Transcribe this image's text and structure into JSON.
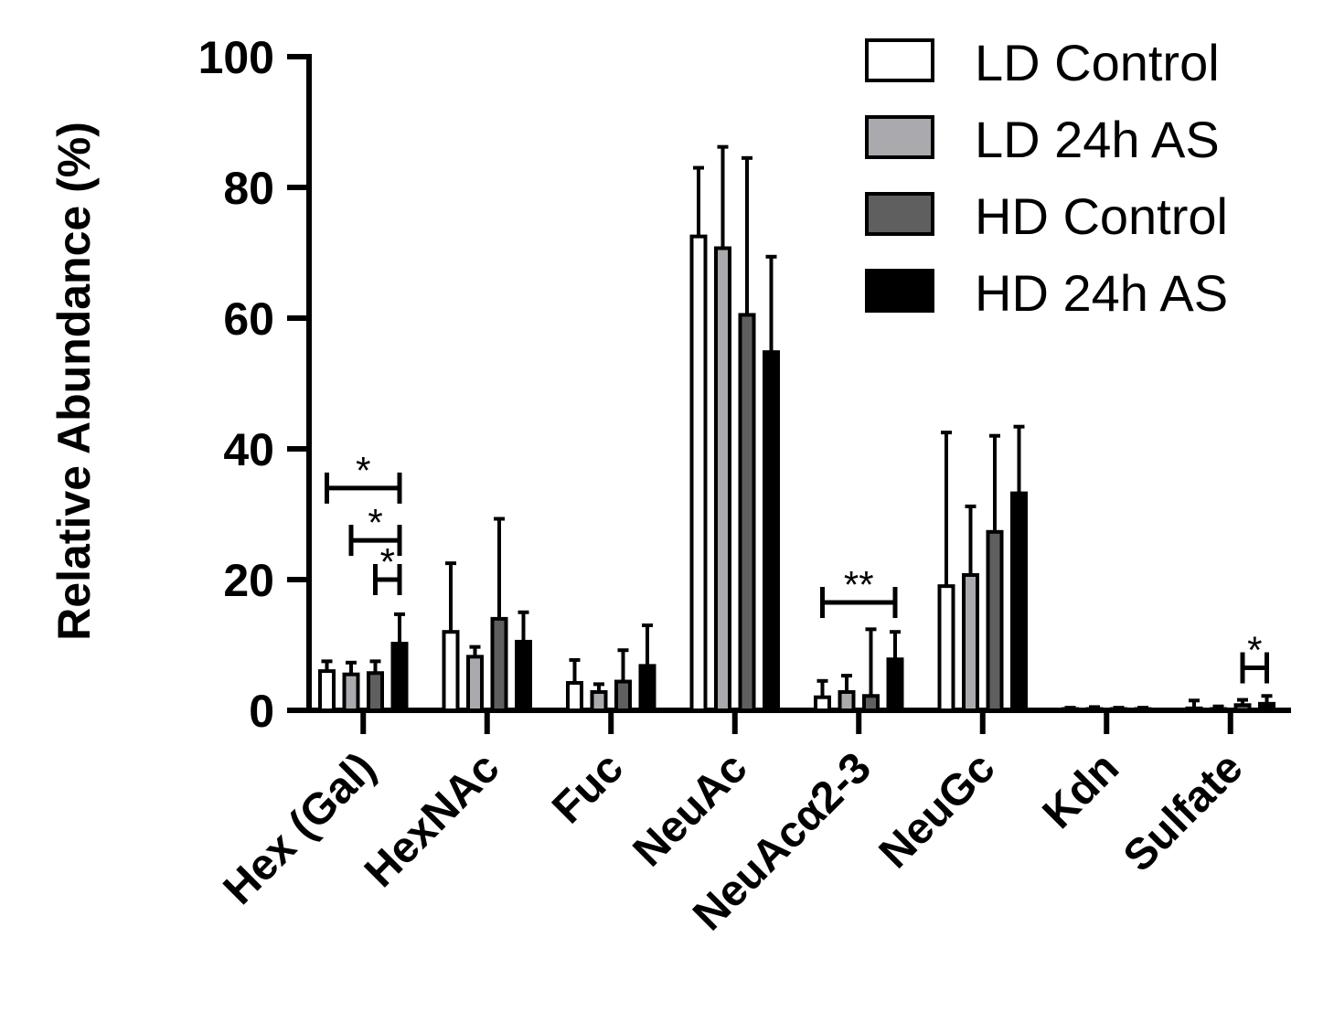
{
  "chart_data": {
    "type": "bar",
    "title": "",
    "xlabel": "",
    "ylabel": "Relative Abundance (%)",
    "ylim": [
      0,
      100
    ],
    "yticks": [
      0,
      20,
      40,
      60,
      80,
      100
    ],
    "categories": [
      "Hex (Gal)",
      "HexNAc",
      "Fuc",
      "NeuAc",
      "NeuAcα2-3",
      "NeuGc",
      "Kdn",
      "Sulfate"
    ],
    "series": [
      {
        "name": "LD Control",
        "color": "#ffffff",
        "values": [
          6,
          12,
          4.2,
          72.5,
          2,
          19,
          0.2,
          0.3
        ],
        "errors": [
          1.5,
          10.5,
          3.5,
          10.5,
          2.5,
          23.5,
          0.2,
          1.2
        ]
      },
      {
        "name": "LD 24h AS",
        "color": "#a9a9ae",
        "values": [
          5.5,
          8.2,
          2.8,
          70.7,
          2.8,
          20.7,
          0.2,
          0.2
        ],
        "errors": [
          1.8,
          1.5,
          1.2,
          15.5,
          2.5,
          10.5,
          0.3,
          0.4
        ]
      },
      {
        "name": "HD Control",
        "color": "#5f5f5f",
        "values": [
          5.7,
          14,
          4.4,
          60.5,
          2.2,
          27.3,
          0.2,
          0.8
        ],
        "errors": [
          1.8,
          15.3,
          4.8,
          24,
          10.2,
          14.7,
          0.2,
          0.8
        ]
      },
      {
        "name": "HD 24h AS",
        "color": "#000000",
        "values": [
          10.2,
          10.5,
          6.8,
          54.8,
          7.8,
          33.2,
          0.2,
          1
        ],
        "errors": [
          4.5,
          4.5,
          6.2,
          14.6,
          4.2,
          10.2,
          0.2,
          1.2
        ]
      }
    ],
    "significance": [
      {
        "category": "Hex (Gal)",
        "from": "LD Control",
        "to": "HD 24h AS",
        "y": 34,
        "label": "*"
      },
      {
        "category": "Hex (Gal)",
        "from": "LD 24h AS",
        "to": "HD 24h AS",
        "y": 26,
        "label": "*"
      },
      {
        "category": "Hex (Gal)",
        "from": "HD Control",
        "to": "HD 24h AS",
        "y": 20,
        "label": "*"
      },
      {
        "category": "NeuAcα2-3",
        "from": "LD Control",
        "to": "HD 24h AS",
        "y": 16.5,
        "label": "**"
      },
      {
        "category": "Sulfate",
        "from": "HD Control",
        "to": "HD 24h AS",
        "y": 6.5,
        "label": "*"
      }
    ],
    "legend_position": "top-right",
    "grid": false
  }
}
